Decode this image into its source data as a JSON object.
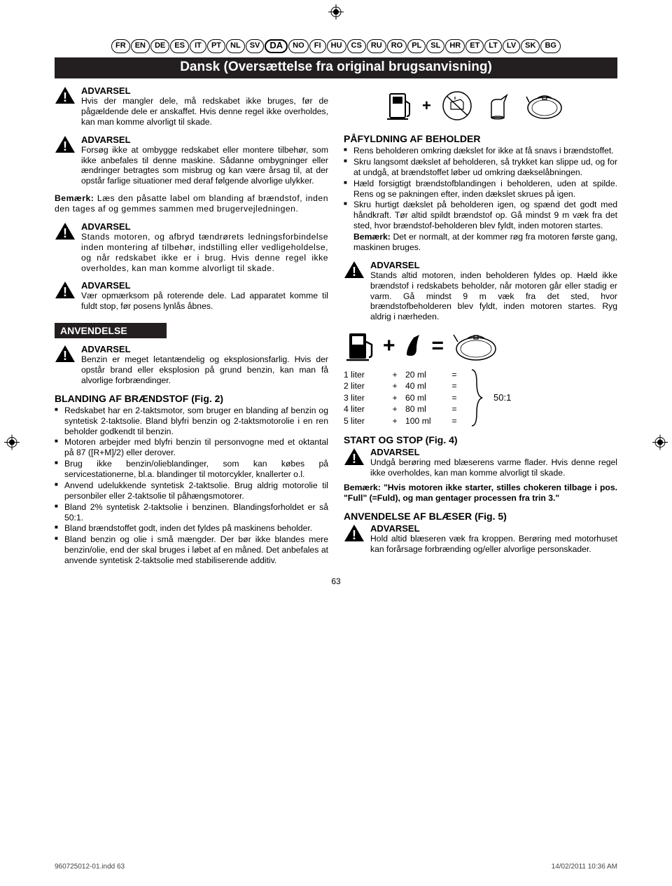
{
  "langs": [
    "FR",
    "EN",
    "DE",
    "ES",
    "IT",
    "PT",
    "NL",
    "SV",
    "DA",
    "NO",
    "FI",
    "HU",
    "CS",
    "RU",
    "RO",
    "PL",
    "SL",
    "HR",
    "ET",
    "LT",
    "LV",
    "SK",
    "BG"
  ],
  "active_lang_index": 8,
  "title": "Dansk (Oversættelse fra original brugsanvisning)",
  "left": {
    "warn1": {
      "title": "ADVARSEL",
      "text": "Hvis der mangler dele, må redskabet ikke bruges, før de pågældende dele er anskaffet. Hvis denne regel ikke overholdes, kan man komme alvorligt til skade."
    },
    "warn2": {
      "title": "ADVARSEL",
      "text": "Forsøg ikke at ombygge redskabet eller montere tilbehør, som ikke anbefales til denne maskine. Sådanne ombygninger eller ændringer betragtes som misbrug og kan være årsag til, at der opstår farlige situationer med deraf følgende alvorlige ulykker."
    },
    "note1_b": "Bemærk:",
    "note1": " Læs den påsatte label om blanding af brændstof, inden den tages af og gemmes sammen med brugervejledningen.",
    "warn3": {
      "title": "ADVARSEL",
      "text": "Stands motoren, og afbryd tændrørets ledningsforbindelse inden montering af tilbehør, indstilling eller vedligeholdelse, og når redskabet ikke er i brug. Hvis denne regel ikke overholdes, kan man komme alvorligt til skade."
    },
    "warn4": {
      "title": "ADVARSEL",
      "text": "Vær opmærksom på roterende dele. Lad apparatet komme til fuldt stop, før posens lynlås åbnes."
    },
    "section_anv": "ANVENDELSE",
    "warn5": {
      "title": "ADVARSEL",
      "text": "Benzin er meget letantændelig og eksplosionsfarlig. Hvis der opstår brand eller eksplosion på grund benzin, kan man få alvorlige forbrændinger."
    },
    "heading_bland": "BLANDING AF BRÆNDSTOF (Fig. 2)",
    "bullets_bland": [
      "Redskabet har en 2-taktsmotor, som bruger en blanding af benzin og syntetisk 2-taktsolie. Bland blyfri benzin og 2-taktsmotorolie i en ren beholder godkendt til benzin.",
      "Motoren arbejder med blyfri benzin til personvogne med et oktantal på 87 ([R+M]/2) eller derover.",
      "Brug ikke benzin/olieblandinger, som kan købes på servicestationerne, bl.a. blandinger til motorcykler, knallerter o.l.",
      "Anvend udelukkende syntetisk 2-taktsolie. Brug aldrig motorolie til personbiler eller 2-taktsolie til påhængsmotorer.",
      "Bland 2% syntetisk 2-taktsolie i benzinen. Blandingsforholdet er så 50:1.",
      "Bland brændstoffet godt, inden det fyldes på maskinens beholder.",
      "Bland benzin og olie i små mængder. Der bør ikke blandes mere benzin/olie, end der skal bruges i løbet af en måned. Det anbefales at anvende syntetisk 2-taktsolie med stabiliserende additiv."
    ]
  },
  "right": {
    "heading_fill": "PÅFYLDNING AF BEHOLDER",
    "bullets_fill": [
      "Rens beholderen omkring dækslet for ikke at få snavs i brændstoffet.",
      "Skru langsomt dækslet af beholderen, så trykket kan slippe ud, og for at undgå, at brændstoffet løber ud omkring dækselåbningen.",
      "Hæld forsigtigt brændstofblandingen i beholderen, uden at spilde. Rens og se pakningen efter, inden dækslet skrues på igen.",
      "Skru hurtigt dækslet på beholderen igen, og spænd det godt med håndkraft. Tør altid spildt brændstof op. Gå mindst 9 m væk fra det sted, hvor brændstof-beholderen blev fyldt, inden motoren startes."
    ],
    "fill_note_b": "Bemærk:",
    "fill_note": " Det er normalt, at der kommer røg fra motoren første gang, maskinen bruges.",
    "warn_fill": {
      "title": "ADVARSEL",
      "text": "Stands altid motoren, inden beholderen fyldes op. Hæld ikke brændstof i redskabets beholder, når motoren går eller stadig er varm. Gå mindst 9 m væk fra det sted, hvor brændstofbeholderen blev fyldt, inden motoren startes. Ryg aldrig i nærheden."
    },
    "mix": {
      "rows": [
        {
          "a": "1 liter",
          "b": "+",
          "c": "20 ml",
          "d": "="
        },
        {
          "a": "2 liter",
          "b": "+",
          "c": "40 ml",
          "d": "="
        },
        {
          "a": "3 liter",
          "b": "+",
          "c": "60 ml",
          "d": "="
        },
        {
          "a": "4 liter",
          "b": "+",
          "c": "80 ml",
          "d": "="
        },
        {
          "a": "5 liter",
          "b": "+",
          "c": "100 ml",
          "d": "="
        }
      ],
      "ratio": "50:1"
    },
    "heading_start": "START OG STOP (Fig. 4)",
    "warn_start": {
      "title": "ADVARSEL",
      "text": "Undgå berøring med blæserens varme flader. Hvis denne regel ikke overholdes, kan man komme alvorligt til skade."
    },
    "start_note_b": "Bemærk: \"Hvis motoren ikke starter, stilles chokeren tilbage i pos. \"Full\" (=Fuld), og man gentager processen fra trin 3.\"",
    "heading_blower": "ANVENDELSE AF BLÆSER (Fig. 5)",
    "warn_blower": {
      "title": "ADVARSEL",
      "text": "Hold altid blæseren væk fra kroppen. Berøring med motorhuset kan forårsage forbrænding og/eller alvorlige personskader."
    }
  },
  "pagenum": "63",
  "footer_left": "960725012-01.indd   63",
  "footer_right": "14/02/2011   10:36 AM"
}
